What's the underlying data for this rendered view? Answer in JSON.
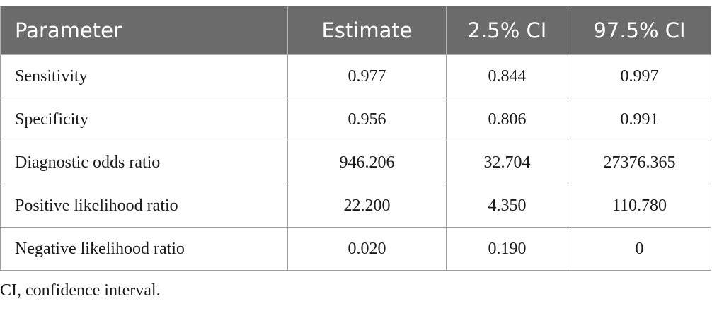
{
  "colors": {
    "header_bg": "#6b6b6b",
    "header_text": "#ffffff",
    "border": "#9e9e9e",
    "body_text": "#1a1a1a"
  },
  "table": {
    "headers": [
      "Parameter",
      "Estimate",
      "2.5% CI",
      "97.5% CI"
    ],
    "rows": [
      [
        "Sensitivity",
        "0.977",
        "0.844",
        "0.997"
      ],
      [
        "Specificity",
        "0.956",
        "0.806",
        "0.991"
      ],
      [
        "Diagnostic odds ratio",
        "946.206",
        "32.704",
        "27376.365"
      ],
      [
        "Positive likelihood ratio",
        "22.200",
        "4.350",
        "110.780"
      ],
      [
        "Negative likelihood ratio",
        "0.020",
        "0.190",
        "0"
      ]
    ]
  },
  "footnote": "CI, confidence interval."
}
